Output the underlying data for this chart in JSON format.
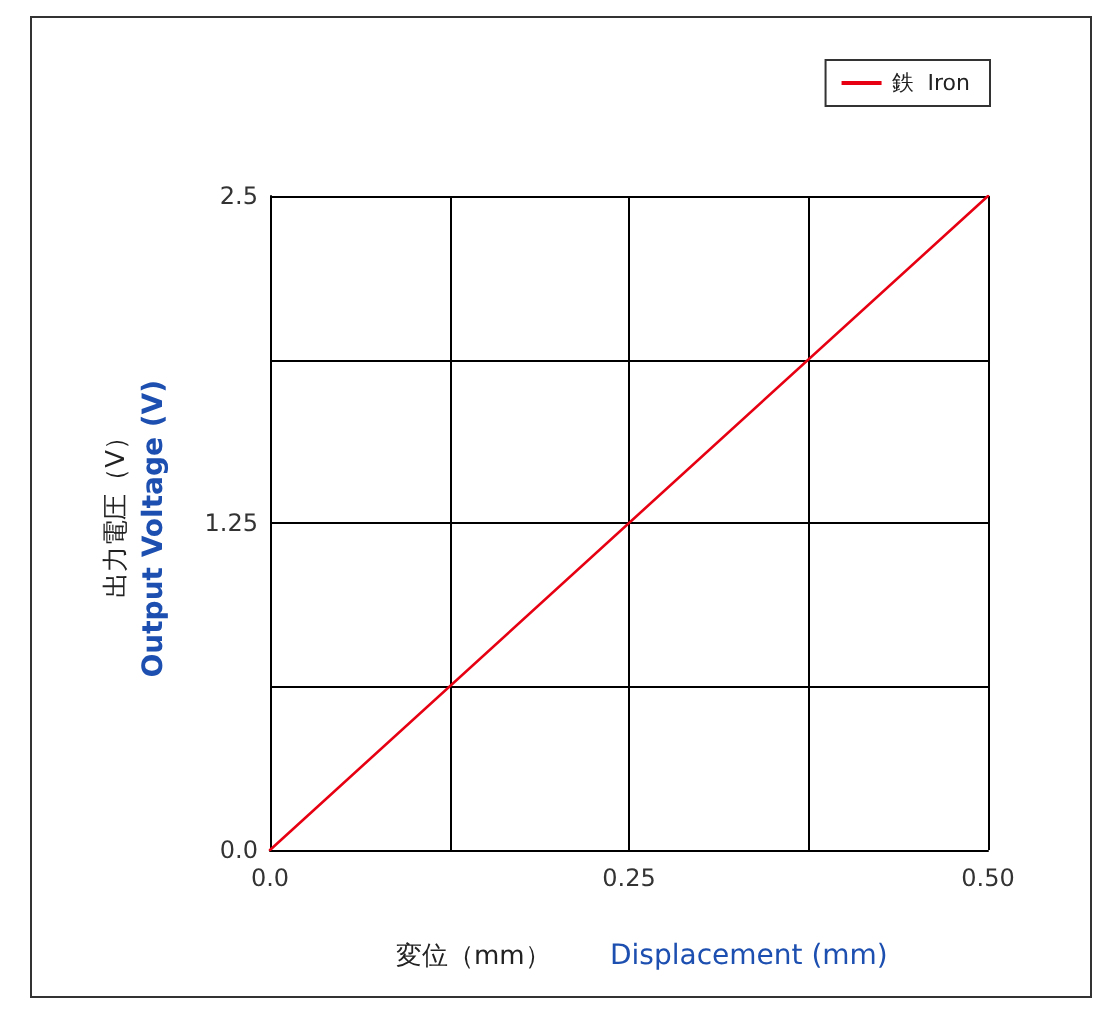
{
  "chart_data": {
    "type": "line",
    "xlabel": "変位（mm）",
    "ylabel": "出力電圧（V）",
    "annotations": [
      "Output Voltage (V)",
      "Displacement (mm)"
    ],
    "x": [
      0,
      0.5
    ],
    "series": [
      {
        "name": "鉄  Iron",
        "color": "#e60012",
        "values": [
          0,
          2.5
        ]
      }
    ],
    "xlim": [
      0,
      0.5
    ],
    "ylim": [
      0,
      2.5
    ],
    "xticks": [
      {
        "value": 0,
        "label": "0.0"
      },
      {
        "value": 0.125,
        "label": null
      },
      0.25,
      {
        "value": 0.375,
        "label": null
      },
      {
        "value": 0.5,
        "label": "0.50"
      }
    ],
    "yticks": [
      {
        "value": 0,
        "label": "0.0"
      },
      {
        "value": 0.625,
        "label": null
      },
      1.25,
      {
        "value": 1.875,
        "label": null
      },
      {
        "value": 2.5,
        "label": "2.5"
      }
    ],
    "grid": true,
    "legend": "top right",
    "marker": "none",
    "line_style": "solid"
  }
}
